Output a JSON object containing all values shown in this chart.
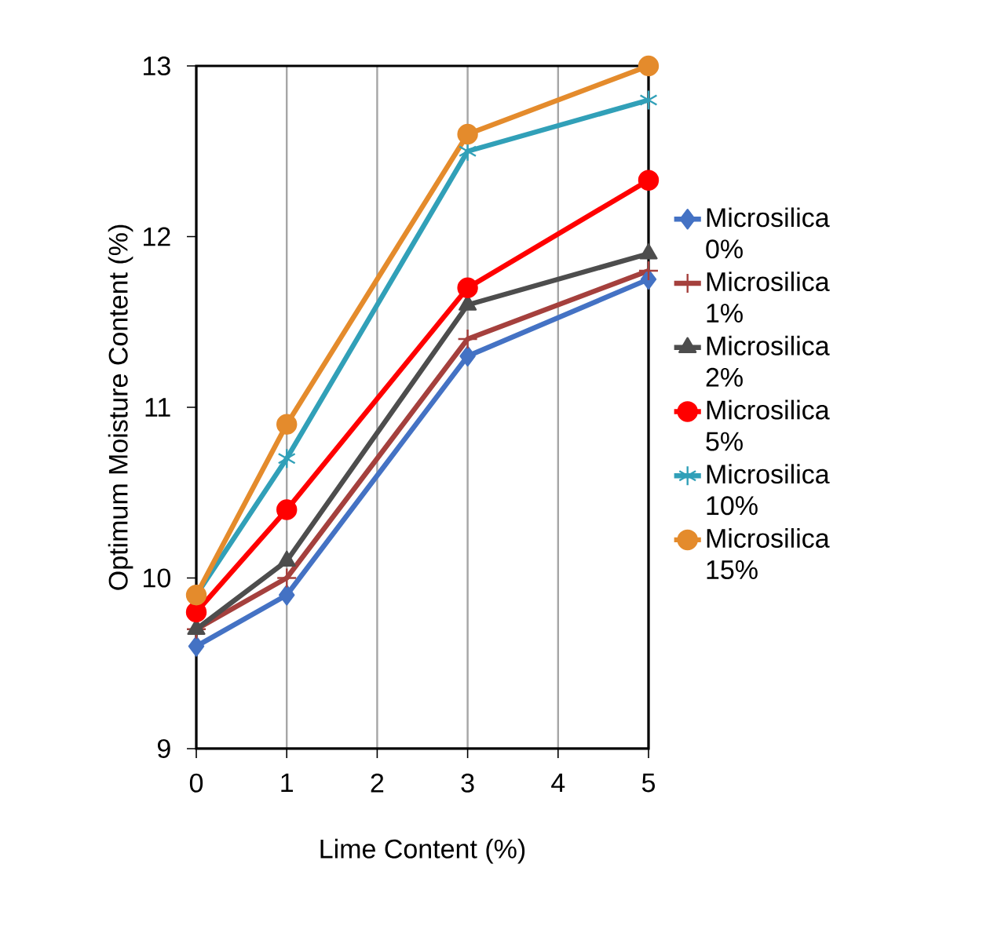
{
  "chart_data": {
    "type": "line",
    "xlabel": "Lime Content (%)",
    "ylabel": "Optimum Moisture Content (%)",
    "xlim": [
      0,
      5
    ],
    "xticks": [
      0,
      1,
      2,
      3,
      4,
      5
    ],
    "ylim": [
      9,
      13
    ],
    "yticks": [
      9,
      10,
      11,
      12,
      13
    ],
    "grid": "x",
    "legend": "right",
    "x": [
      0,
      1,
      3,
      5
    ],
    "series": [
      {
        "name": "Microsilica 0%",
        "color": "#4472c4",
        "marker": "diamond",
        "values": [
          9.6,
          9.9,
          11.3,
          11.75
        ]
      },
      {
        "name": "Microsilica 1%",
        "color": "#a5403d",
        "marker": "cross",
        "values": [
          9.7,
          10.0,
          11.4,
          11.8
        ]
      },
      {
        "name": "Microsilica 2%",
        "color": "#4d4d4d",
        "marker": "triangle",
        "values": [
          9.7,
          10.1,
          11.6,
          11.9
        ]
      },
      {
        "name": "Microsilica 5%",
        "color": "#ff0000",
        "marker": "circle",
        "values": [
          9.8,
          10.4,
          11.7,
          12.33
        ]
      },
      {
        "name": "Microsilica 10%",
        "color": "#31a0b8",
        "marker": "cross",
        "values": [
          9.9,
          10.7,
          12.5,
          12.8
        ]
      },
      {
        "name": "Microsilica 15%",
        "color": "#e48b2c",
        "marker": "circle",
        "values": [
          9.9,
          10.9,
          12.6,
          13.0
        ]
      }
    ]
  }
}
